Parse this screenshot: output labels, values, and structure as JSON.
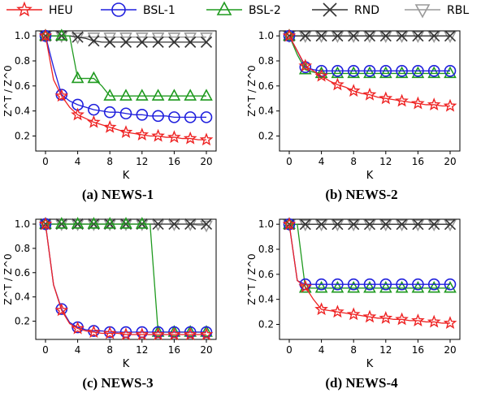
{
  "legend": [
    {
      "name": "HEU",
      "color": "#ee2222",
      "marker": "star"
    },
    {
      "name": "BSL-1",
      "color": "#1f1fdd",
      "marker": "circle"
    },
    {
      "name": "BSL-2",
      "color": "#1f9a1f",
      "marker": "triangle-up"
    },
    {
      "name": "RND",
      "color": "#333333",
      "marker": "x"
    },
    {
      "name": "RBL",
      "color": "#9a9a9a",
      "marker": "triangle-down"
    }
  ],
  "chart_data": [
    {
      "type": "line",
      "caption": "(a) NEWS-1",
      "xlabel": "K",
      "ylabel": "Z^T / Z^0",
      "xlim": [
        0,
        20
      ],
      "ylim": [
        0.08,
        1.04
      ],
      "xticks": [
        0,
        4,
        8,
        12,
        16,
        20
      ],
      "yticks": [
        0.2,
        0.4,
        0.6,
        0.8,
        1.0
      ],
      "x": [
        0,
        1,
        2,
        3,
        4,
        5,
        6,
        7,
        8,
        9,
        10,
        11,
        12,
        13,
        14,
        15,
        16,
        17,
        18,
        19,
        20
      ],
      "marker_x": [
        0,
        2,
        4,
        6,
        8,
        10,
        12,
        14,
        16,
        18,
        20
      ],
      "series": [
        {
          "name": "HEU",
          "values": [
            1.0,
            0.65,
            0.52,
            0.43,
            0.37,
            0.34,
            0.31,
            0.29,
            0.27,
            0.25,
            0.23,
            0.22,
            0.21,
            0.2,
            0.2,
            0.19,
            0.19,
            0.18,
            0.18,
            0.17,
            0.17
          ]
        },
        {
          "name": "BSL-1",
          "values": [
            1.0,
            0.75,
            0.53,
            0.48,
            0.45,
            0.43,
            0.41,
            0.4,
            0.39,
            0.39,
            0.38,
            0.37,
            0.37,
            0.36,
            0.36,
            0.36,
            0.35,
            0.35,
            0.35,
            0.35,
            0.35
          ]
        },
        {
          "name": "BSL-2",
          "values": [
            1.0,
            1.0,
            1.0,
            1.0,
            0.66,
            0.66,
            0.66,
            0.6,
            0.52,
            0.52,
            0.52,
            0.52,
            0.52,
            0.52,
            0.52,
            0.52,
            0.52,
            0.52,
            0.52,
            0.52,
            0.52
          ]
        },
        {
          "name": "RND",
          "values": [
            1.0,
            1.0,
            1.0,
            1.0,
            0.99,
            0.98,
            0.96,
            0.95,
            0.95,
            0.95,
            0.95,
            0.95,
            0.95,
            0.95,
            0.95,
            0.95,
            0.95,
            0.95,
            0.95,
            0.95,
            0.95
          ]
        },
        {
          "name": "RBL",
          "values": [
            1.0,
            1.0,
            1.0,
            1.0,
            0.99,
            0.99,
            0.99,
            0.99,
            0.99,
            0.99,
            0.99,
            0.99,
            0.99,
            0.99,
            0.99,
            0.99,
            0.99,
            0.99,
            0.99,
            0.99,
            0.99
          ]
        }
      ]
    },
    {
      "type": "line",
      "caption": "(b) NEWS-2",
      "xlabel": "K",
      "ylabel": "Z^T / Z^0",
      "xlim": [
        0,
        20
      ],
      "ylim": [
        0.08,
        1.04
      ],
      "xticks": [
        0,
        4,
        8,
        12,
        16,
        20
      ],
      "yticks": [
        0.2,
        0.4,
        0.6,
        0.8,
        1.0
      ],
      "x": [
        0,
        1,
        2,
        3,
        4,
        5,
        6,
        7,
        8,
        9,
        10,
        11,
        12,
        13,
        14,
        15,
        16,
        17,
        18,
        19,
        20
      ],
      "marker_x": [
        0,
        2,
        4,
        6,
        8,
        10,
        12,
        14,
        16,
        18,
        20
      ],
      "series": [
        {
          "name": "HEU",
          "values": [
            1.0,
            0.88,
            0.76,
            0.72,
            0.68,
            0.64,
            0.61,
            0.59,
            0.56,
            0.54,
            0.53,
            0.51,
            0.5,
            0.49,
            0.48,
            0.47,
            0.46,
            0.45,
            0.45,
            0.44,
            0.44
          ]
        },
        {
          "name": "BSL-1",
          "values": [
            1.0,
            0.88,
            0.75,
            0.73,
            0.72,
            0.72,
            0.72,
            0.72,
            0.72,
            0.72,
            0.72,
            0.72,
            0.72,
            0.72,
            0.72,
            0.72,
            0.72,
            0.72,
            0.72,
            0.72,
            0.72
          ]
        },
        {
          "name": "BSL-2",
          "values": [
            1.0,
            0.85,
            0.73,
            0.71,
            0.7,
            0.7,
            0.7,
            0.7,
            0.7,
            0.7,
            0.7,
            0.7,
            0.7,
            0.7,
            0.7,
            0.7,
            0.7,
            0.7,
            0.7,
            0.7,
            0.7
          ]
        },
        {
          "name": "RND",
          "values": [
            1.0,
            1.0,
            1.0,
            1.0,
            1.0,
            1.0,
            1.0,
            1.0,
            1.0,
            1.0,
            1.0,
            1.0,
            1.0,
            1.0,
            1.0,
            1.0,
            1.0,
            1.0,
            1.0,
            1.0,
            1.0
          ]
        },
        {
          "name": "RBL",
          "values": [
            1.0,
            1.0,
            1.0,
            1.0,
            1.0,
            1.0,
            1.0,
            1.0,
            1.0,
            1.0,
            1.0,
            1.0,
            1.0,
            1.0,
            1.0,
            1.0,
            1.0,
            1.0,
            1.0,
            1.0,
            1.0
          ]
        }
      ]
    },
    {
      "type": "line",
      "caption": "(c) NEWS-3",
      "xlabel": "K",
      "ylabel": "Z^T / Z^0",
      "xlim": [
        0,
        20
      ],
      "ylim": [
        0.05,
        1.04
      ],
      "xticks": [
        0,
        4,
        8,
        12,
        16,
        20
      ],
      "yticks": [
        0.2,
        0.4,
        0.6,
        0.8,
        1.0
      ],
      "x": [
        0,
        1,
        2,
        3,
        4,
        5,
        6,
        7,
        8,
        9,
        10,
        11,
        12,
        13,
        14,
        15,
        16,
        17,
        18,
        19,
        20
      ],
      "marker_x": [
        0,
        2,
        4,
        6,
        8,
        10,
        12,
        14,
        16,
        18,
        20
      ],
      "series": [
        {
          "name": "HEU",
          "values": [
            1.0,
            0.5,
            0.29,
            0.18,
            0.14,
            0.12,
            0.11,
            0.1,
            0.1,
            0.1,
            0.09,
            0.09,
            0.09,
            0.09,
            0.09,
            0.09,
            0.09,
            0.09,
            0.09,
            0.09,
            0.09
          ]
        },
        {
          "name": "BSL-1",
          "values": [
            1.0,
            0.5,
            0.3,
            0.19,
            0.15,
            0.13,
            0.12,
            0.12,
            0.11,
            0.11,
            0.11,
            0.11,
            0.11,
            0.11,
            0.11,
            0.11,
            0.11,
            0.11,
            0.11,
            0.11,
            0.11
          ]
        },
        {
          "name": "BSL-2",
          "values": [
            1.0,
            1.0,
            1.0,
            1.0,
            1.0,
            1.0,
            1.0,
            1.0,
            1.0,
            1.0,
            1.0,
            1.0,
            1.0,
            1.0,
            0.11,
            0.11,
            0.11,
            0.11,
            0.11,
            0.11,
            0.11
          ]
        },
        {
          "name": "RND",
          "values": [
            1.0,
            1.0,
            1.0,
            1.0,
            1.0,
            1.0,
            1.0,
            1.0,
            1.0,
            1.0,
            1.0,
            1.0,
            1.0,
            1.0,
            1.0,
            1.0,
            1.0,
            1.0,
            1.0,
            1.0,
            1.0
          ]
        },
        {
          "name": "RBL",
          "values": [
            1.0,
            1.0,
            1.0,
            1.0,
            1.0,
            1.0,
            1.0,
            1.0,
            1.0,
            1.0,
            1.0,
            1.0,
            1.0,
            1.0,
            1.0,
            1.0,
            1.0,
            1.0,
            1.0,
            0.99,
            0.99
          ]
        }
      ]
    },
    {
      "type": "line",
      "caption": "(d) NEWS-4",
      "xlabel": "K",
      "ylabel": "Z^T / Z^0",
      "xlim": [
        0,
        20
      ],
      "ylim": [
        0.08,
        1.04
      ],
      "xticks": [
        0,
        4,
        8,
        12,
        16,
        20
      ],
      "yticks": [
        0.2,
        0.4,
        0.6,
        0.8,
        1.0
      ],
      "x": [
        0,
        1,
        2,
        3,
        4,
        5,
        6,
        7,
        8,
        9,
        10,
        11,
        12,
        13,
        14,
        15,
        16,
        17,
        18,
        19,
        20
      ],
      "marker_x": [
        0,
        2,
        4,
        6,
        8,
        10,
        12,
        14,
        16,
        18,
        20
      ],
      "series": [
        {
          "name": "HEU",
          "values": [
            1.0,
            0.55,
            0.5,
            0.4,
            0.32,
            0.31,
            0.3,
            0.29,
            0.28,
            0.27,
            0.26,
            0.25,
            0.25,
            0.24,
            0.24,
            0.23,
            0.23,
            0.22,
            0.22,
            0.21,
            0.21
          ]
        },
        {
          "name": "BSL-1",
          "values": [
            1.0,
            0.55,
            0.52,
            0.52,
            0.52,
            0.52,
            0.52,
            0.52,
            0.52,
            0.52,
            0.52,
            0.52,
            0.52,
            0.52,
            0.52,
            0.52,
            0.52,
            0.52,
            0.52,
            0.52,
            0.52
          ]
        },
        {
          "name": "BSL-2",
          "values": [
            1.0,
            1.0,
            0.49,
            0.49,
            0.49,
            0.49,
            0.49,
            0.49,
            0.49,
            0.49,
            0.49,
            0.49,
            0.49,
            0.49,
            0.49,
            0.49,
            0.49,
            0.49,
            0.49,
            0.49,
            0.49
          ]
        },
        {
          "name": "RND",
          "values": [
            1.0,
            1.0,
            1.0,
            1.0,
            1.0,
            1.0,
            1.0,
            1.0,
            1.0,
            1.0,
            1.0,
            1.0,
            1.0,
            1.0,
            1.0,
            1.0,
            1.0,
            1.0,
            1.0,
            1.0,
            1.0
          ]
        },
        {
          "name": "RBL",
          "values": [
            1.0,
            1.0,
            1.0,
            1.0,
            1.0,
            1.0,
            1.0,
            1.0,
            1.0,
            1.0,
            1.0,
            1.0,
            1.0,
            1.0,
            1.0,
            1.0,
            1.0,
            1.0,
            1.0,
            1.0,
            1.0
          ]
        }
      ]
    }
  ]
}
